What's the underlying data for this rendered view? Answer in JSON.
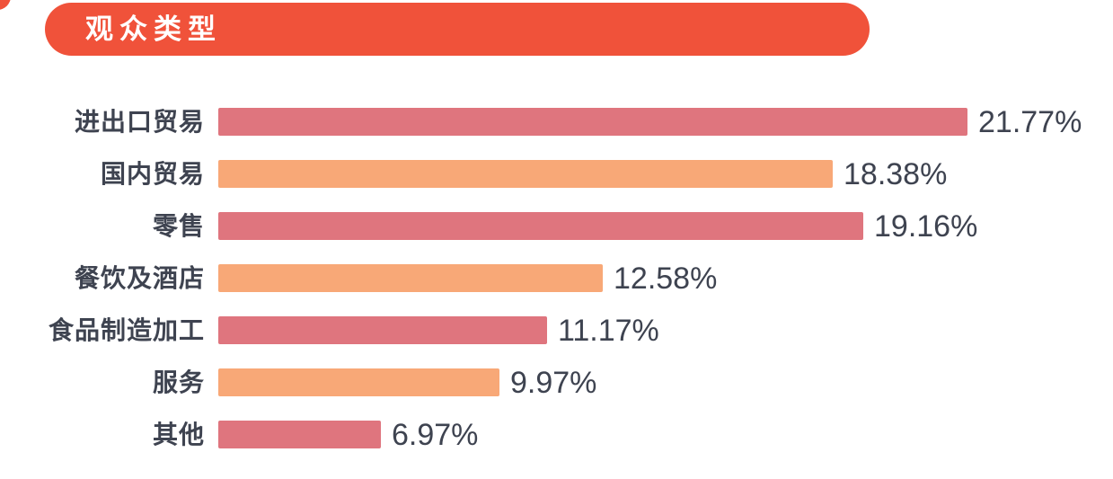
{
  "page": {
    "background_color": "#ffffff"
  },
  "header": {
    "title": "观众类型",
    "badge_color": "#F0523A",
    "title_color": "#ffffff"
  },
  "decoration": {
    "corner_wedge_color": "#F0523A"
  },
  "chart_data": {
    "type": "bar",
    "orientation": "horizontal",
    "title": "观众类型",
    "categories": [
      "进出口贸易",
      "国内贸易",
      "零售",
      "餐饮及酒店",
      "食品制造加工",
      "服务",
      "其他"
    ],
    "values": [
      21.77,
      18.38,
      19.16,
      12.58,
      11.17,
      9.97,
      6.97
    ],
    "value_labels": [
      "21.77%",
      "18.38%",
      "19.16%",
      "12.58%",
      "11.17%",
      "9.97%",
      "6.97%"
    ],
    "bar_colors": [
      "#DF757E",
      "#F8A877",
      "#DF757E",
      "#F8A877",
      "#DF757E",
      "#F8A877",
      "#DF757E"
    ],
    "label_color": "#3E4350",
    "value_color": "#3E4350",
    "grid": false,
    "legend": false,
    "value_label_position": "right-of-bar"
  }
}
